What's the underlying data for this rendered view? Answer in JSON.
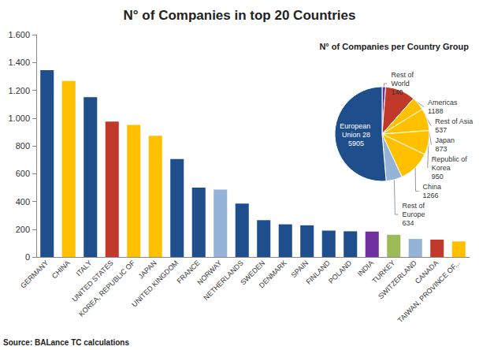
{
  "chart_data": [
    {
      "type": "bar",
      "title": "N° of Companies in top 20 Countries",
      "source": "Source: BALance TC calculations",
      "categories": [
        "GERMANY",
        "CHINA",
        "ITALY",
        "UNITED STATES",
        "KOREA, REPUBLIC OF",
        "JAPAN",
        "UNITED KINGDOM",
        "FRANCE",
        "NORWAY",
        "NETHERLANDS",
        "SWEDEN",
        "DENMARK",
        "SPAIN",
        "FINLAND",
        "POLAND",
        "INDIA",
        "TURKEY",
        "SWITZERLAND",
        "CANADA",
        "TAIWAN, PROVINCE OF..."
      ],
      "values": [
        1345,
        1266,
        1150,
        975,
        950,
        873,
        705,
        500,
        485,
        385,
        265,
        235,
        228,
        190,
        185,
        183,
        160,
        130,
        125,
        112
      ],
      "colors": [
        "#1f4e8c",
        "#ffc000",
        "#1f4e8c",
        "#c0392b",
        "#ffc000",
        "#ffc000",
        "#1f4e8c",
        "#1f4e8c",
        "#95b3d7",
        "#1f4e8c",
        "#1f4e8c",
        "#1f4e8c",
        "#1f4e8c",
        "#1f4e8c",
        "#1f4e8c",
        "#7030a0",
        "#9bbb59",
        "#95b3d7",
        "#c0392b",
        "#ffc000"
      ],
      "ylim": [
        0,
        1600
      ],
      "yticks": [
        0,
        200,
        400,
        600,
        800,
        {
          "value": 1000,
          "label": "1.000"
        },
        {
          "value": 1200,
          "label": "1.200"
        },
        {
          "value": 1400,
          "label": "1.400"
        },
        {
          "value": 1600,
          "label": "1.600"
        }
      ],
      "grid": false
    },
    {
      "type": "pie",
      "title": "N° of Companies per Country Group",
      "categories": [
        "Rest of World",
        "Americas",
        "Rest of Asia",
        "Japan",
        "Republic of Korea",
        "China",
        "Rest of Europe",
        "European Union 28"
      ],
      "values": [
        140,
        1188,
        537,
        873,
        950,
        1266,
        634,
        5905
      ],
      "colors": [
        "#7030a0",
        "#c0392b",
        "#ffc000",
        "#ffc000",
        "#ffc000",
        "#ffc000",
        "#95b3d7",
        "#1f4e8c"
      ],
      "data_labels": true
    }
  ]
}
